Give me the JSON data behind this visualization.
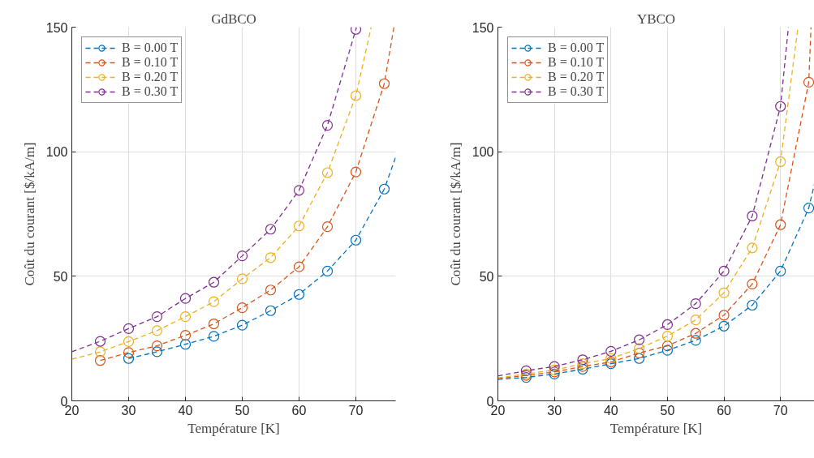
{
  "chart_data": [
    {
      "type": "scatter",
      "title": "GdBCO",
      "xlabel": "Température [K]",
      "ylabel": "Coût du courant [$/kA/m]",
      "xlim": [
        20,
        77
      ],
      "ylim": [
        0,
        150
      ],
      "xticks": [
        20,
        30,
        40,
        50,
        60,
        70
      ],
      "yticks": [
        0,
        50,
        100,
        150
      ],
      "grid": true,
      "legend": "top left",
      "marker": "circle",
      "line_style": "dashed",
      "series": [
        {
          "name": "B = 0.00 T",
          "color": "#0072bd",
          "x": [
            30,
            35,
            40,
            45,
            50,
            55,
            60,
            65,
            70,
            75
          ],
          "values": [
            17.0,
            19.7,
            22.7,
            25.9,
            30.4,
            36.2,
            42.7,
            52.1,
            64.5,
            85.0
          ]
        },
        {
          "name": "B = 0.10 T",
          "color": "#d95319",
          "x": [
            25,
            30,
            35,
            40,
            45,
            50,
            55,
            60,
            65,
            70,
            75
          ],
          "values": [
            16.2,
            19.4,
            22.1,
            26.3,
            30.9,
            37.4,
            44.5,
            53.8,
            69.9,
            91.9,
            127.3
          ]
        },
        {
          "name": "B = 0.20 T",
          "color": "#edb120",
          "x": [
            25,
            30,
            35,
            40,
            45,
            50,
            55,
            60,
            65,
            70
          ],
          "values": [
            19.7,
            23.8,
            28.2,
            33.8,
            39.8,
            49.0,
            57.5,
            70.2,
            91.6,
            122.5
          ]
        },
        {
          "name": "B = 0.30 T",
          "color": "#7e2f8e",
          "x": [
            25,
            30,
            35,
            40,
            45,
            50,
            55,
            60,
            65,
            70
          ],
          "values": [
            23.9,
            29.0,
            33.8,
            41.1,
            47.6,
            58.2,
            68.9,
            84.5,
            110.6,
            149.1
          ]
        },
        {
          "type": "line",
          "marker": "none",
          "color": "#0072bd",
          "x": [
            30,
            35,
            40,
            45,
            50,
            55,
            60,
            65,
            70,
            75,
            77
          ],
          "values": [
            17.0,
            19.7,
            22.7,
            25.9,
            30.4,
            36.2,
            42.7,
            52.1,
            64.5,
            85.0,
            97.8
          ]
        },
        {
          "type": "line",
          "marker": "none",
          "color": "#d95319",
          "x": [
            25,
            30,
            35,
            40,
            45,
            50,
            55,
            60,
            65,
            70,
            75,
            76.7
          ],
          "values": [
            16.2,
            19.4,
            22.1,
            26.3,
            30.9,
            37.4,
            44.5,
            53.8,
            69.9,
            91.9,
            127.3,
            150
          ]
        },
        {
          "type": "line",
          "marker": "none",
          "color": "#edb120",
          "x": [
            20,
            25,
            30,
            35,
            40,
            45,
            50,
            55,
            60,
            65,
            70,
            72.7
          ],
          "values": [
            16.7,
            19.7,
            23.8,
            28.2,
            33.8,
            39.8,
            49.0,
            57.5,
            70.2,
            91.6,
            122.5,
            150
          ]
        },
        {
          "type": "line",
          "marker": "none",
          "color": "#7e2f8e",
          "x": [
            20,
            25,
            30,
            35,
            40,
            45,
            50,
            55,
            60,
            65,
            70,
            70.1
          ],
          "values": [
            19.7,
            23.9,
            29.0,
            33.8,
            41.1,
            47.6,
            58.2,
            68.9,
            84.5,
            110.6,
            149.1,
            150
          ]
        }
      ]
    },
    {
      "type": "scatter",
      "title": "YBCO",
      "xlabel": "Température [K]",
      "ylabel": "Coût du courant [$/kA/m]",
      "xlim": [
        20,
        76
      ],
      "ylim": [
        0,
        150
      ],
      "xticks": [
        20,
        30,
        40,
        50,
        60,
        70
      ],
      "yticks": [
        0,
        50,
        100,
        150
      ],
      "grid": true,
      "legend": "top left",
      "marker": "circle",
      "line_style": "dashed",
      "series": [
        {
          "name": "B = 0.00 T",
          "color": "#0072bd",
          "x": [
            25,
            30,
            35,
            40,
            45,
            50,
            55,
            60,
            65,
            70,
            75
          ],
          "values": [
            9.4,
            10.8,
            12.7,
            14.9,
            17.0,
            20.3,
            24.3,
            30.0,
            38.4,
            52.1,
            77.4
          ]
        },
        {
          "name": "B = 0.10 T",
          "color": "#d95319",
          "x": [
            25,
            30,
            35,
            40,
            45,
            50,
            55,
            60,
            65,
            70,
            75
          ],
          "values": [
            10.2,
            11.6,
            13.8,
            15.6,
            19.2,
            22.1,
            27.1,
            34.4,
            46.9,
            70.7,
            127.9
          ]
        },
        {
          "name": "B = 0.20 T",
          "color": "#edb120",
          "x": [
            25,
            30,
            35,
            40,
            45,
            50,
            55,
            60,
            65,
            70
          ],
          "values": [
            10.8,
            12.4,
            14.9,
            17.0,
            21.0,
            26.0,
            32.5,
            43.4,
            61.4,
            96.0
          ]
        },
        {
          "name": "B = 0.30 T",
          "color": "#7e2f8e",
          "x": [
            25,
            30,
            35,
            40,
            45,
            50,
            55,
            60,
            65,
            70
          ],
          "values": [
            12.1,
            13.8,
            16.5,
            19.9,
            24.5,
            30.6,
            39.0,
            52.1,
            74.2,
            118.2
          ]
        },
        {
          "type": "line",
          "marker": "none",
          "color": "#0072bd",
          "x": [
            20,
            25,
            30,
            35,
            40,
            45,
            50,
            55,
            60,
            65,
            70,
            75,
            76
          ],
          "values": [
            8.6,
            9.4,
            10.8,
            12.7,
            14.9,
            17.0,
            20.3,
            24.3,
            30.0,
            38.4,
            52.1,
            77.4,
            87
          ]
        },
        {
          "type": "line",
          "marker": "none",
          "color": "#d95319",
          "x": [
            20,
            25,
            30,
            35,
            40,
            45,
            50,
            55,
            60,
            65,
            70,
            75,
            75.4
          ],
          "values": [
            8.9,
            10.2,
            11.6,
            13.8,
            15.6,
            19.2,
            22.1,
            27.1,
            34.4,
            46.9,
            70.7,
            127.9,
            150
          ]
        },
        {
          "type": "line",
          "marker": "none",
          "color": "#edb120",
          "x": [
            20,
            25,
            30,
            35,
            40,
            45,
            50,
            55,
            60,
            65,
            70,
            73.1
          ],
          "values": [
            9.2,
            10.8,
            12.4,
            14.9,
            17.0,
            21.0,
            26.0,
            32.5,
            43.4,
            61.4,
            96.0,
            150
          ]
        },
        {
          "type": "line",
          "marker": "none",
          "color": "#7e2f8e",
          "x": [
            20,
            25,
            30,
            35,
            40,
            45,
            50,
            55,
            60,
            65,
            70,
            71.4
          ],
          "values": [
            10.0,
            12.1,
            13.8,
            16.5,
            19.9,
            24.5,
            30.6,
            39.0,
            52.1,
            74.2,
            118.2,
            150
          ]
        }
      ]
    }
  ]
}
